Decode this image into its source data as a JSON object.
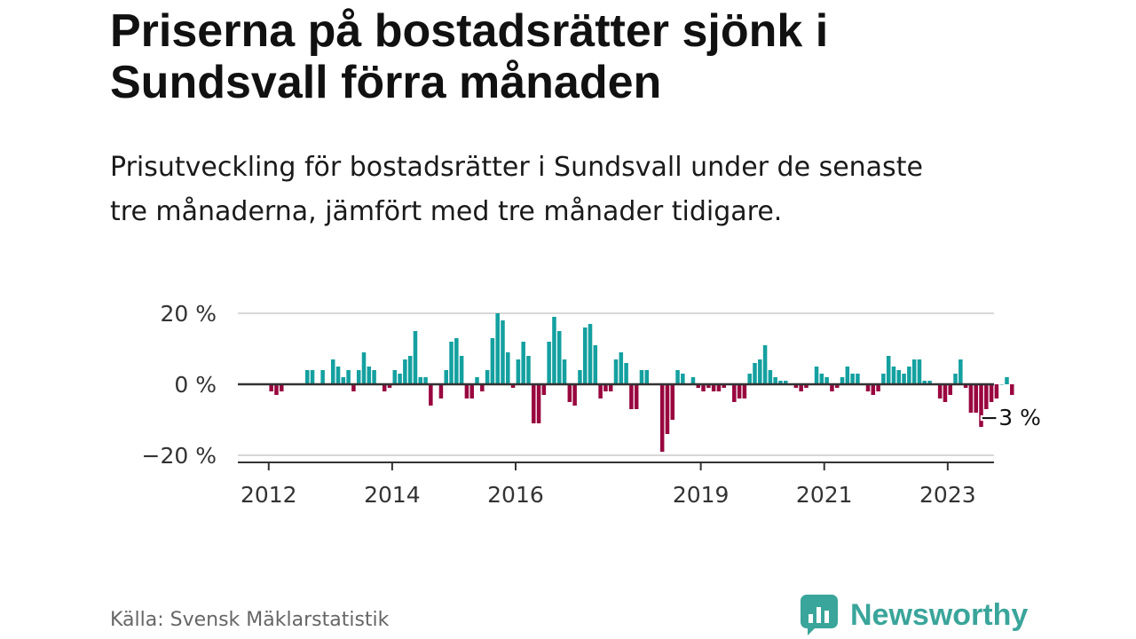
{
  "title": "Priserna på bostadsrätter sjönk i Sundsvall förra månaden",
  "subtitle": "Prisutveckling för bostadsrätter i Sundsvall under de senaste tre månaderna, jämfört med tre månader tidigare.",
  "source": "Källa: Svensk Mäklarstatistik",
  "brand": "Newsworthy",
  "colors": {
    "positive": "#14a0a0",
    "negative": "#99063f",
    "grid": "#d8d8d8",
    "axis": "#333333",
    "brand": "#3aa59a"
  },
  "chart_data": {
    "type": "bar",
    "unit": "%",
    "x_range": [
      2011.5,
      2023.75
    ],
    "ylim": [
      -20,
      20
    ],
    "grid": true,
    "y_ticks": [
      {
        "value": 20,
        "label": "20 %"
      },
      {
        "value": 0,
        "label": "0 %"
      },
      {
        "value": -20,
        "label": "−20 %"
      }
    ],
    "x_ticks": [
      {
        "value": 2012,
        "label": "2012"
      },
      {
        "value": 2014,
        "label": "2014"
      },
      {
        "value": 2016,
        "label": "2016"
      },
      {
        "value": 2019,
        "label": "2019"
      },
      {
        "value": 2021,
        "label": "2021"
      },
      {
        "value": 2023,
        "label": "2023"
      }
    ],
    "end_label": "−3 %",
    "series": [
      {
        "start_year": 2012,
        "start_month": 1,
        "values": [
          -2,
          -3,
          -2,
          0,
          0,
          0,
          0,
          4,
          4,
          0,
          4,
          0,
          7,
          5,
          2,
          4,
          -2,
          4,
          9,
          5,
          4,
          0,
          -2,
          -1,
          4,
          3,
          7,
          8,
          15,
          2,
          2,
          -6,
          0,
          -4,
          4,
          12,
          13,
          8,
          -4,
          -4,
          2,
          -2,
          4,
          13,
          20,
          18,
          9,
          -1,
          7,
          12,
          8,
          -11,
          -11,
          -3,
          12,
          19,
          15,
          7,
          -5,
          -6,
          4,
          16,
          17,
          11,
          -4,
          -2,
          -2,
          7,
          9,
          6,
          -7,
          -7,
          4,
          4,
          0,
          0,
          -19,
          -14,
          -10,
          4,
          3,
          0,
          2,
          -1,
          -2,
          -1,
          -2,
          -2,
          -1,
          0,
          -5,
          -4,
          -4,
          3,
          6,
          7,
          11,
          4,
          2,
          1,
          1,
          0,
          -1,
          -2,
          -1,
          0,
          5,
          3,
          2,
          -2,
          -1,
          2,
          5,
          3,
          3,
          0,
          -2,
          -3,
          -2,
          3,
          8,
          5,
          4,
          3,
          5,
          7,
          7,
          1,
          1,
          0,
          -4,
          -5,
          -3,
          3,
          7,
          -1,
          -8,
          -8,
          -12,
          -7,
          -5,
          -4,
          0,
          2,
          -3
        ]
      }
    ]
  }
}
